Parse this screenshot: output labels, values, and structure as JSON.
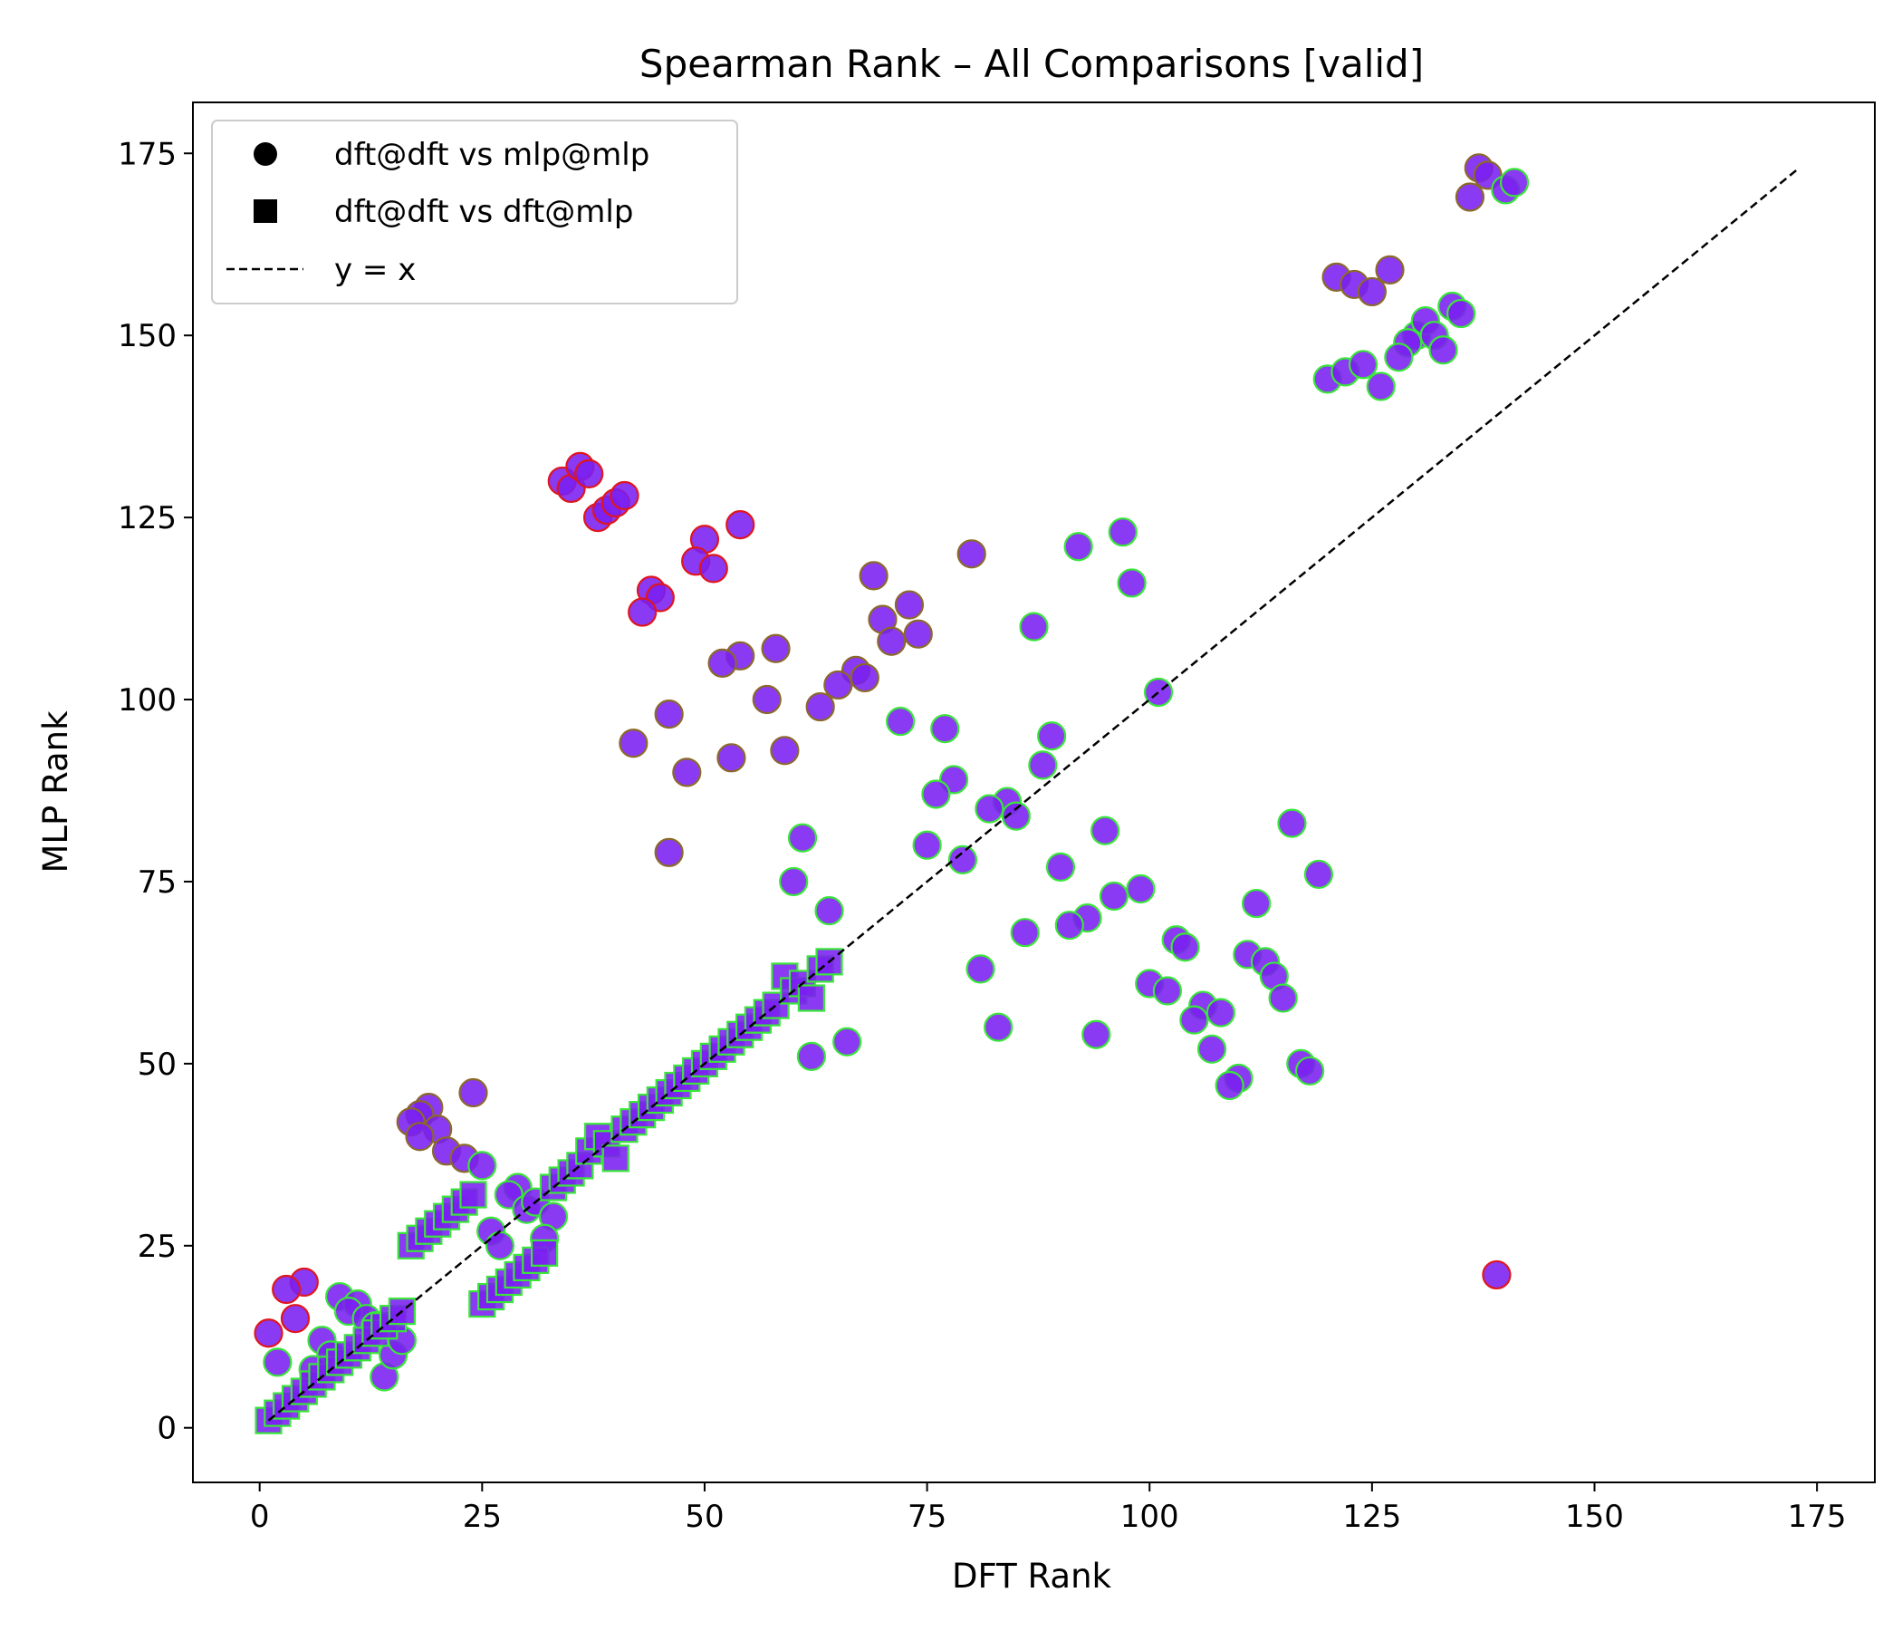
{
  "chart_data": {
    "type": "scatter",
    "title": "Spearman Rank – All Comparisons [valid]",
    "xlabel": "DFT Rank",
    "ylabel": "MLP Rank",
    "xlim": [
      -7.5,
      181.5
    ],
    "ylim": [
      -7.5,
      182
    ],
    "xticks": [
      0,
      25,
      50,
      75,
      100,
      125,
      150,
      175
    ],
    "yticks": [
      0,
      25,
      50,
      75,
      100,
      125,
      150,
      175
    ],
    "grid": false,
    "legend_position": "upper-left",
    "colors": {
      "fill": "#7a1ff0",
      "edge_green": "#3ae63a",
      "edge_red": "#e0161e",
      "edge_olive": "#8a6a2a",
      "reference_line": "#000000"
    },
    "series": [
      {
        "name": "dft@dft vs mlp@mlp",
        "marker": "circle",
        "points": [
          [
            137,
            173
          ],
          [
            138,
            172
          ],
          [
            140,
            170
          ],
          [
            141,
            171
          ],
          [
            136,
            169
          ],
          [
            121,
            158
          ],
          [
            123,
            157
          ],
          [
            125,
            156
          ],
          [
            127,
            159
          ],
          [
            130,
            150
          ],
          [
            131,
            152
          ],
          [
            132,
            150
          ],
          [
            134,
            154
          ],
          [
            135,
            153
          ],
          [
            129,
            149
          ],
          [
            133,
            148
          ],
          [
            128,
            147
          ],
          [
            120,
            144
          ],
          [
            122,
            145
          ],
          [
            124,
            146
          ],
          [
            126,
            143
          ],
          [
            34,
            130
          ],
          [
            35,
            129
          ],
          [
            36,
            132
          ],
          [
            37,
            131
          ],
          [
            38,
            125
          ],
          [
            39,
            126
          ],
          [
            40,
            127
          ],
          [
            41,
            128
          ],
          [
            54,
            124
          ],
          [
            50,
            122
          ],
          [
            49,
            119
          ],
          [
            51,
            118
          ],
          [
            44,
            115
          ],
          [
            45,
            114
          ],
          [
            43,
            112
          ],
          [
            97,
            123
          ],
          [
            92,
            121
          ],
          [
            80,
            120
          ],
          [
            98,
            116
          ],
          [
            69,
            117
          ],
          [
            73,
            113
          ],
          [
            70,
            111
          ],
          [
            74,
            109
          ],
          [
            71,
            108
          ],
          [
            87,
            110
          ],
          [
            58,
            107
          ],
          [
            54,
            106
          ],
          [
            52,
            105
          ],
          [
            67,
            104
          ],
          [
            68,
            103
          ],
          [
            65,
            102
          ],
          [
            101,
            101
          ],
          [
            57,
            100
          ],
          [
            63,
            99
          ],
          [
            46,
            98
          ],
          [
            72,
            97
          ],
          [
            77,
            96
          ],
          [
            42,
            94
          ],
          [
            59,
            93
          ],
          [
            53,
            92
          ],
          [
            88,
            91
          ],
          [
            48,
            90
          ],
          [
            89,
            95
          ],
          [
            78,
            89
          ],
          [
            76,
            87
          ],
          [
            84,
            86
          ],
          [
            82,
            85
          ],
          [
            85,
            84
          ],
          [
            116,
            83
          ],
          [
            95,
            82
          ],
          [
            61,
            81
          ],
          [
            75,
            80
          ],
          [
            46,
            79
          ],
          [
            79,
            78
          ],
          [
            90,
            77
          ],
          [
            119,
            76
          ],
          [
            60,
            75
          ],
          [
            99,
            74
          ],
          [
            96,
            73
          ],
          [
            112,
            72
          ],
          [
            64,
            71
          ],
          [
            93,
            70
          ],
          [
            91,
            69
          ],
          [
            86,
            68
          ],
          [
            103,
            67
          ],
          [
            104,
            66
          ],
          [
            111,
            65
          ],
          [
            113,
            64
          ],
          [
            81,
            63
          ],
          [
            114,
            62
          ],
          [
            100,
            61
          ],
          [
            102,
            60
          ],
          [
            115,
            59
          ],
          [
            106,
            58
          ],
          [
            108,
            57
          ],
          [
            105,
            56
          ],
          [
            83,
            55
          ],
          [
            94,
            54
          ],
          [
            66,
            53
          ],
          [
            107,
            52
          ],
          [
            62,
            51
          ],
          [
            117,
            50
          ],
          [
            118,
            49
          ],
          [
            110,
            48
          ],
          [
            109,
            47
          ],
          [
            139,
            21
          ],
          [
            24,
            46
          ],
          [
            19,
            44
          ],
          [
            18,
            43
          ],
          [
            17,
            42
          ],
          [
            20,
            41
          ],
          [
            18,
            40
          ],
          [
            21,
            38
          ],
          [
            23,
            37
          ],
          [
            25,
            36
          ],
          [
            29,
            33
          ],
          [
            28,
            32
          ],
          [
            30,
            30
          ],
          [
            31,
            31
          ],
          [
            33,
            29
          ],
          [
            26,
            27
          ],
          [
            27,
            25
          ],
          [
            32,
            26
          ],
          [
            5,
            20
          ],
          [
            3,
            19
          ],
          [
            1,
            13
          ],
          [
            4,
            15
          ],
          [
            2,
            9
          ],
          [
            9,
            18
          ],
          [
            11,
            17
          ],
          [
            10,
            16
          ],
          [
            12,
            15
          ],
          [
            13,
            14
          ],
          [
            7,
            12
          ],
          [
            8,
            10
          ],
          [
            6,
            8
          ],
          [
            14,
            7
          ],
          [
            15,
            10
          ],
          [
            16,
            12
          ]
        ]
      },
      {
        "name": "dft@dft vs dft@mlp",
        "marker": "square",
        "points": [
          [
            1,
            1
          ],
          [
            2,
            2
          ],
          [
            3,
            3
          ],
          [
            4,
            4
          ],
          [
            5,
            5
          ],
          [
            6,
            6
          ],
          [
            7,
            7
          ],
          [
            8,
            8
          ],
          [
            9,
            9
          ],
          [
            10,
            10
          ],
          [
            11,
            11
          ],
          [
            12,
            12
          ],
          [
            13,
            13
          ],
          [
            14,
            14
          ],
          [
            15,
            15
          ],
          [
            16,
            16
          ],
          [
            17,
            25
          ],
          [
            18,
            26
          ],
          [
            19,
            27
          ],
          [
            20,
            28
          ],
          [
            21,
            29
          ],
          [
            22,
            30
          ],
          [
            23,
            31
          ],
          [
            24,
            32
          ],
          [
            25,
            17
          ],
          [
            26,
            18
          ],
          [
            27,
            19
          ],
          [
            28,
            20
          ],
          [
            29,
            21
          ],
          [
            30,
            22
          ],
          [
            31,
            23
          ],
          [
            32,
            24
          ],
          [
            33,
            33
          ],
          [
            34,
            34
          ],
          [
            35,
            35
          ],
          [
            36,
            36
          ],
          [
            37,
            38
          ],
          [
            38,
            40
          ],
          [
            39,
            39
          ],
          [
            40,
            37
          ],
          [
            41,
            41
          ],
          [
            42,
            42
          ],
          [
            43,
            43
          ],
          [
            44,
            44
          ],
          [
            45,
            45
          ],
          [
            46,
            46
          ],
          [
            47,
            47
          ],
          [
            48,
            48
          ],
          [
            49,
            49
          ],
          [
            50,
            50
          ],
          [
            51,
            51
          ],
          [
            52,
            52
          ],
          [
            53,
            53
          ],
          [
            54,
            54
          ],
          [
            55,
            55
          ],
          [
            56,
            56
          ],
          [
            57,
            57
          ],
          [
            58,
            58
          ],
          [
            59,
            62
          ],
          [
            60,
            60
          ],
          [
            61,
            61
          ],
          [
            62,
            59
          ],
          [
            63,
            63
          ],
          [
            64,
            64
          ]
        ]
      }
    ],
    "reference_line": {
      "name": "y = x",
      "style": "dashed",
      "from": [
        1,
        1
      ],
      "to": [
        173,
        173
      ]
    }
  }
}
